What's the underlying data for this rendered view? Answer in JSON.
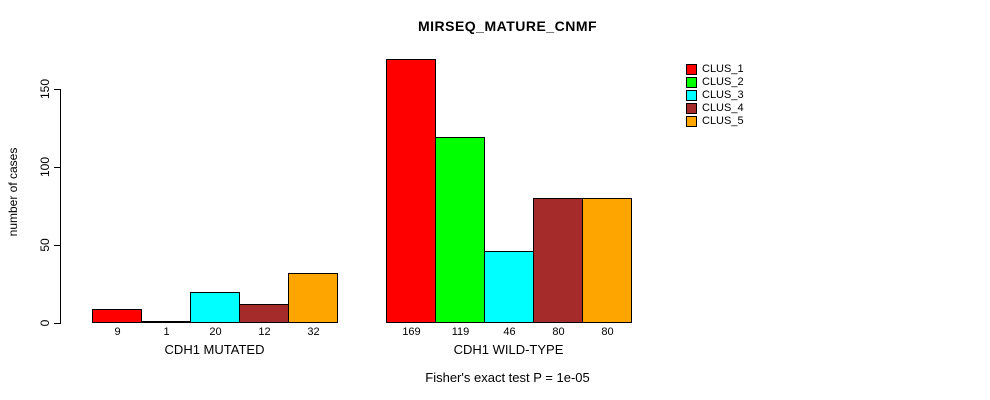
{
  "chart_data": {
    "type": "bar",
    "title": "MIRSEQ_MATURE_CNMF",
    "ylabel": "number of cases",
    "xlabel": "",
    "ylim": [
      0,
      175
    ],
    "yticks": [
      "0",
      "50",
      "100",
      "150"
    ],
    "ytick_values": [
      0,
      50,
      100,
      150
    ],
    "grid": "off",
    "legend_position": "right-inside",
    "clusters": [
      {
        "name": "CLUS_1",
        "color": "#FF0000"
      },
      {
        "name": "CLUS_2",
        "color": "#00FF00"
      },
      {
        "name": "CLUS_3",
        "color": "#00FFFF"
      },
      {
        "name": "CLUS_4",
        "color": "#A52A2A"
      },
      {
        "name": "CLUS_5",
        "color": "#FFA500"
      }
    ],
    "groups": [
      {
        "label": "CDH1 MUTATED",
        "values": [
          9,
          1,
          20,
          12,
          32
        ]
      },
      {
        "label": "CDH1 WILD-TYPE",
        "values": [
          169,
          119,
          46,
          80,
          80
        ]
      }
    ],
    "footnote": "Fisher's exact test P = 1e-05"
  }
}
